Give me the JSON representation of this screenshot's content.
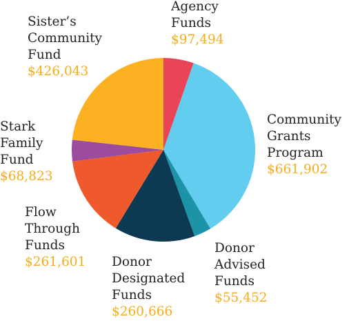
{
  "colors": {
    "agency": "#ea4556",
    "community_grants": "#63cdef",
    "donor_advised": "#1d93a8",
    "donor_designated": "#0d3a52",
    "flow_through": "#ef5a2c",
    "stark": "#9d4c9d",
    "sisters": "#fbb121",
    "value_text": "#f5ad1b",
    "name_text": "#222222"
  },
  "chart_data": {
    "type": "pie",
    "title": "",
    "slices": [
      {
        "name": "Agency\nFunds",
        "value": 97494,
        "value_label": "$97,494",
        "color": "#ea4556"
      },
      {
        "name": "Community\nGrants\nProgram",
        "value": 661902,
        "value_label": "$661,902",
        "color": "#63cdef"
      },
      {
        "name": "Donor\nAdvised\nFunds",
        "value": 55452,
        "value_label": "$55,452",
        "color": "#1d93a8"
      },
      {
        "name": "Donor\nDesignated\nFunds",
        "value": 260666,
        "value_label": "$260,666",
        "color": "#0d3a52"
      },
      {
        "name": "Flow\nThrough\nFunds",
        "value": 261601,
        "value_label": "$261,601",
        "color": "#ef5a2c"
      },
      {
        "name": "Stark\nFamily\nFund",
        "value": 68823,
        "value_label": "$68,823",
        "color": "#9d4c9d"
      },
      {
        "name": "Sister’s\nCommunity\nFund",
        "value": 426043,
        "value_label": "$426,043",
        "color": "#fbb121"
      }
    ]
  }
}
